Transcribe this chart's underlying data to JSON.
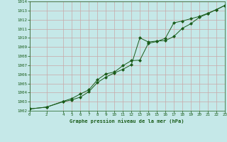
{
  "title": "Graphe pression niveau de la mer (hPa)",
  "bg_color": "#c5e8e8",
  "grid_color": "#c8a8a8",
  "line_color": "#1a5c1a",
  "marker_color": "#1a5c1a",
  "xlim": [
    0,
    23
  ],
  "ylim": [
    1002,
    1014
  ],
  "xticks": [
    0,
    2,
    4,
    5,
    6,
    7,
    8,
    9,
    10,
    11,
    12,
    13,
    14,
    15,
    16,
    17,
    18,
    19,
    20,
    21,
    22,
    23
  ],
  "yticks": [
    1002,
    1003,
    1004,
    1005,
    1006,
    1007,
    1008,
    1009,
    1010,
    1011,
    1012,
    1013,
    1014
  ],
  "series1_x": [
    0,
    2,
    4,
    5,
    6,
    7,
    8,
    9,
    10,
    11,
    12,
    13,
    14,
    15,
    16,
    17,
    18,
    19,
    20,
    21,
    22,
    23
  ],
  "series1_y": [
    1002.2,
    1002.4,
    1003.0,
    1003.2,
    1003.5,
    1004.1,
    1005.1,
    1005.7,
    1006.15,
    1006.55,
    1007.05,
    1010.0,
    1009.55,
    1009.65,
    1009.7,
    1010.15,
    1011.05,
    1011.55,
    1012.25,
    1012.65,
    1013.1,
    1013.55
  ],
  "series2_x": [
    0,
    2,
    4,
    5,
    6,
    7,
    8,
    9,
    10,
    11,
    12,
    13,
    14,
    15,
    16,
    17,
    18,
    19,
    20,
    21,
    22,
    23
  ],
  "series2_y": [
    1002.2,
    1002.4,
    1003.05,
    1003.35,
    1003.85,
    1004.3,
    1005.4,
    1006.05,
    1006.25,
    1006.95,
    1007.5,
    1007.55,
    1009.4,
    1009.6,
    1009.95,
    1011.65,
    1011.85,
    1012.1,
    1012.35,
    1012.7,
    1013.1,
    1013.55
  ]
}
